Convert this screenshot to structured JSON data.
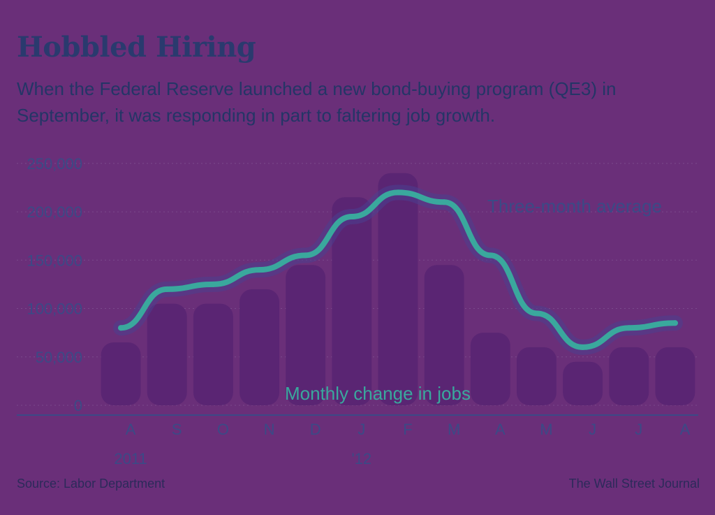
{
  "header": {
    "title": "Hobbled Hiring",
    "subtitle": "When the Federal Reserve launched a new bond-buying program (QE3) in September, it was responding in part to faltering job growth."
  },
  "footer": {
    "source": "Source: Labor Department",
    "credit": "The Wall Street Journal"
  },
  "chart_data": {
    "type": "bar",
    "title": "Hobbled Hiring",
    "categories": [
      "A",
      "S",
      "O",
      "N",
      "D",
      "J",
      "F",
      "M",
      "A",
      "M",
      "J",
      "J",
      "A"
    ],
    "x_tick_labels": [
      "A",
      "S",
      "O",
      "N",
      "D",
      "J",
      "F",
      "M",
      "A",
      "M",
      "J",
      "J",
      "A"
    ],
    "year_labels": [
      {
        "at": 0,
        "label": "2011"
      },
      {
        "at": 5,
        "label": "'12"
      }
    ],
    "y_tick_labels": [
      "250,000",
      "200,000",
      "150,000",
      "100,000",
      "50,000",
      "0"
    ],
    "ylim": [
      0,
      260000
    ],
    "grid": true,
    "series": [
      {
        "name": "Monthly change in jobs",
        "kind": "bar",
        "color": "#5a2573",
        "values": [
          65000,
          105000,
          105000,
          120000,
          145000,
          215000,
          240000,
          145000,
          75000,
          60000,
          45000,
          60000,
          60000
        ]
      },
      {
        "name": "Three-month average",
        "kind": "line",
        "color": "#3aa89d",
        "values": [
          80000,
          120000,
          125000,
          140000,
          155000,
          195000,
          220000,
          210000,
          155000,
          95000,
          60000,
          80000,
          85000
        ]
      }
    ],
    "annotations": {
      "line_label": "Three-month average",
      "bar_label": "Monthly change in jobs"
    }
  }
}
